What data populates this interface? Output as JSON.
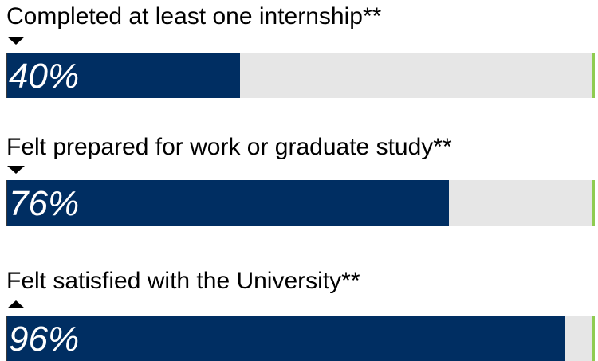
{
  "accent_color": "#002e62",
  "track_color": "#e6e6e6",
  "endcap_color": "#8fcc50",
  "chart_data": {
    "type": "bar",
    "orientation": "horizontal",
    "xlim": [
      0,
      100
    ],
    "categories": [
      "Completed at least one internship**",
      "Felt prepared for work or graduate study**",
      "Felt satisfied with the University**"
    ],
    "values": [
      40,
      76,
      96
    ],
    "value_labels": [
      "40%",
      "76%",
      "96%"
    ],
    "markers": [
      "down-triangle-icon",
      "down-triangle-icon",
      "up-triangle-icon"
    ]
  }
}
